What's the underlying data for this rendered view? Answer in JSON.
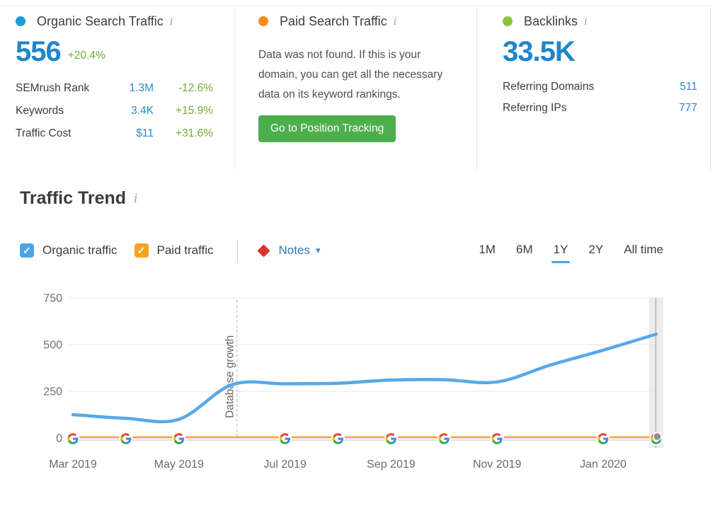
{
  "icons": {
    "info": "i",
    "caret_down": "▾",
    "check": "✓"
  },
  "scorecards": {
    "organic": {
      "title": "Organic Search Traffic",
      "dot_color": "#1e9bd7",
      "value": "556",
      "change": "+20.4%",
      "rows": [
        {
          "label": "SEMrush Rank",
          "value": "1.3M",
          "change": "-12.6%"
        },
        {
          "label": "Keywords",
          "value": "3.4K",
          "change": "+15.9%"
        },
        {
          "label": "Traffic Cost",
          "value": "$11",
          "change": "+31.6%"
        }
      ]
    },
    "paid": {
      "title": "Paid Search Traffic",
      "dot_color": "#f28d1e",
      "message": "Data was not found. If this is your domain, you can get all the necessary data on its keyword rankings.",
      "button_label": "Go to Position Tracking",
      "button_color": "#4cae4c"
    },
    "backlinks": {
      "title": "Backlinks",
      "dot_color": "#8bc53f",
      "value": "33.5K",
      "rows": [
        {
          "label": "Referring Domains",
          "value": "511"
        },
        {
          "label": "Referring IPs",
          "value": "777"
        }
      ]
    }
  },
  "traffic_trend": {
    "title": "Traffic Trend",
    "legend": {
      "organic_label": "Organic traffic",
      "organic_color": "#4ba4ea",
      "organic_checked": true,
      "paid_label": "Paid traffic",
      "paid_color": "#f8a11e",
      "paid_checked": true
    },
    "notes_label": "Notes",
    "notes_diamond_color": "#d8382c",
    "ranges": [
      "1M",
      "6M",
      "1Y",
      "2Y",
      "All time"
    ],
    "active_range": "1Y"
  },
  "chart_data": {
    "type": "line",
    "x": [
      "Mar 2019",
      "Apr 2019",
      "May 2019",
      "Jun 2019",
      "Jul 2019",
      "Aug 2019",
      "Sep 2019",
      "Oct 2019",
      "Nov 2019",
      "Dec 2019",
      "Jan 2020",
      "Feb 2020"
    ],
    "series": [
      {
        "name": "Organic traffic",
        "color": "#58a9e8",
        "values": [
          125,
          105,
          100,
          285,
          290,
          293,
          310,
          312,
          300,
          390,
          470,
          556
        ]
      },
      {
        "name": "Paid traffic",
        "color": "#f2a240",
        "values": [
          0,
          0,
          0,
          0,
          0,
          0,
          0,
          0,
          0,
          0,
          0,
          0
        ],
        "marker": "google-g",
        "marker_hidden_at": [
          "Jun 2019",
          "Dec 2019"
        ]
      }
    ],
    "ylim": [
      0,
      750
    ],
    "yticks": [
      0,
      250,
      500,
      750
    ],
    "xtick_labels": [
      "Mar 2019",
      "May 2019",
      "Jul 2019",
      "Sep 2019",
      "Nov 2019",
      "Jan 2020"
    ],
    "annotation": {
      "label": "Database growth",
      "x": "Jun 2019"
    },
    "highlight_x": "Feb 2020",
    "grid": true,
    "legend_position": "top-left"
  }
}
